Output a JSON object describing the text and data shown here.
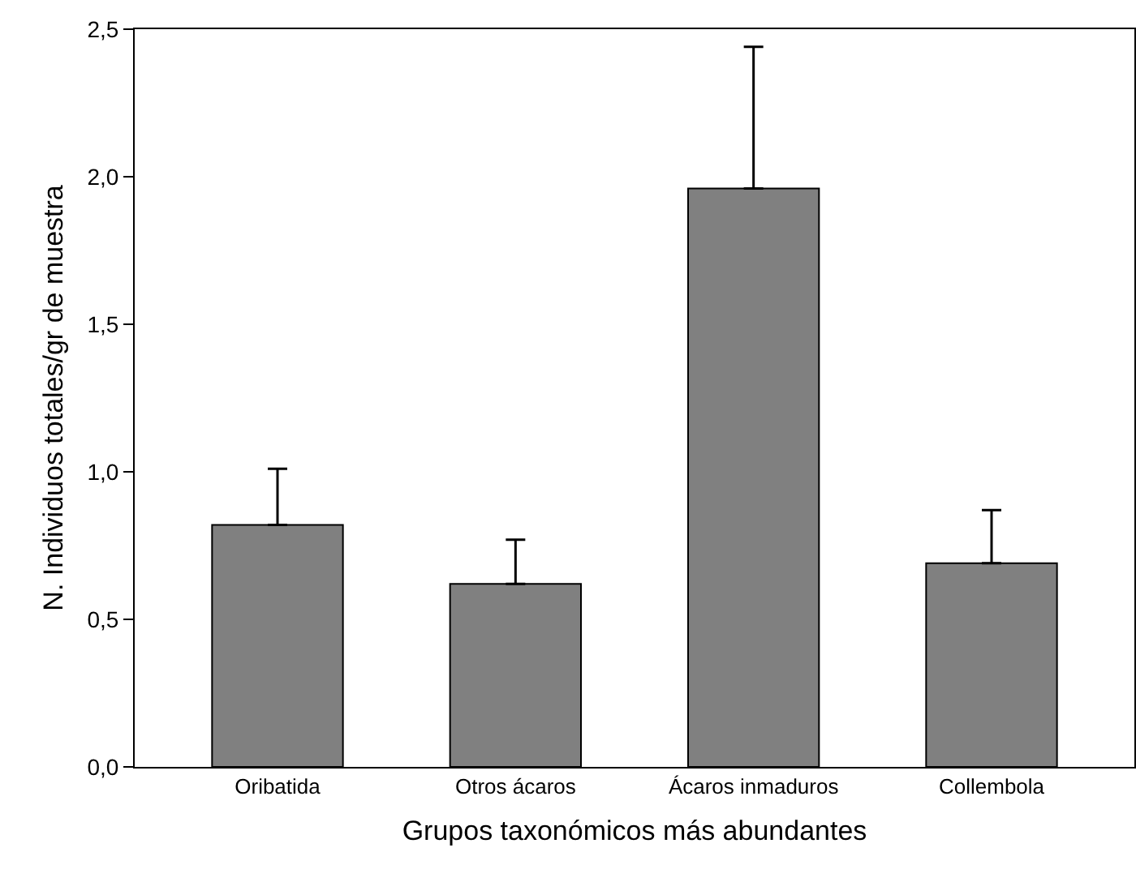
{
  "chart_data": {
    "type": "bar",
    "xlabel": "Grupos taxonómicos más abundantes",
    "ylabel": "N. Individuos totales/gr de muestra",
    "categories": [
      "Oribatida",
      "Otros ácaros",
      "Ácaros inmaduros",
      "Collembola"
    ],
    "values": [
      0.82,
      0.62,
      1.96,
      0.69
    ],
    "errors": [
      [
        0.82,
        1.01
      ],
      [
        0.62,
        0.77
      ],
      [
        1.96,
        2.44
      ],
      [
        0.69,
        0.87
      ]
    ],
    "color": "#808080",
    "ylim": [
      0,
      2.5
    ],
    "yticks": [
      {
        "value": 0,
        "label": "0,0"
      },
      {
        "value": 0.5,
        "label": "0,5"
      },
      {
        "value": 1,
        "label": "1,0"
      },
      {
        "value": 1.5,
        "label": "1,5"
      },
      {
        "value": 2,
        "label": "2,0"
      },
      {
        "value": 2.5,
        "label": "2,5"
      }
    ],
    "grid": false,
    "legend": false
  }
}
